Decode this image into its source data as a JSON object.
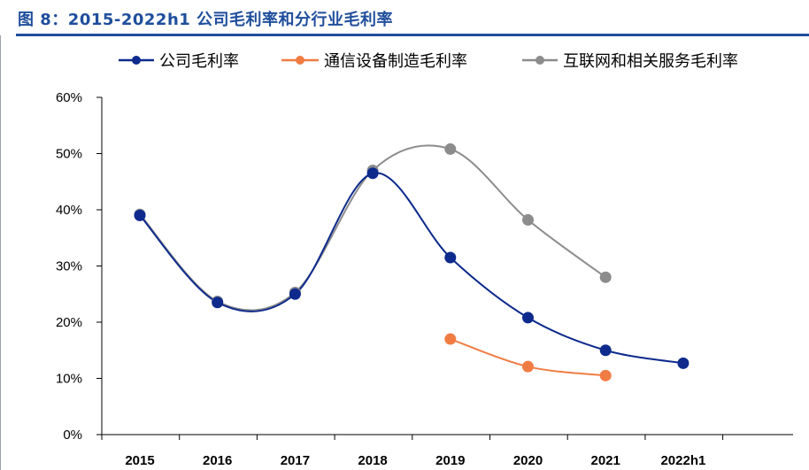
{
  "figure": {
    "title": "图 8：2015-2022h1 公司毛利率和分行业毛利率"
  },
  "colors": {
    "title": "#1f4e9c",
    "series": [
      "#0d2a8c",
      "#f07c43",
      "#8c8c8c"
    ]
  },
  "chart_data": {
    "type": "line",
    "categories": [
      "2015",
      "2016",
      "2017",
      "2018",
      "2019",
      "2020",
      "2021",
      "2022h1"
    ],
    "yticks": [
      "0%",
      "10%",
      "20%",
      "30%",
      "40%",
      "50%",
      "60%"
    ],
    "ylim": [
      0,
      60
    ],
    "grid": false,
    "legend_position": "top",
    "smooth": true,
    "series": [
      {
        "name": "公司毛利率",
        "values": [
          39.0,
          23.5,
          25.0,
          46.5,
          31.5,
          20.8,
          15.0,
          12.7
        ]
      },
      {
        "name": "通信设备制造毛利率",
        "values": [
          null,
          null,
          null,
          null,
          17.0,
          12.1,
          10.5,
          null
        ]
      },
      {
        "name": "互联网和相关服务毛利率",
        "values": [
          39.2,
          23.7,
          25.3,
          47.0,
          50.8,
          38.2,
          28.0,
          null
        ]
      }
    ]
  }
}
